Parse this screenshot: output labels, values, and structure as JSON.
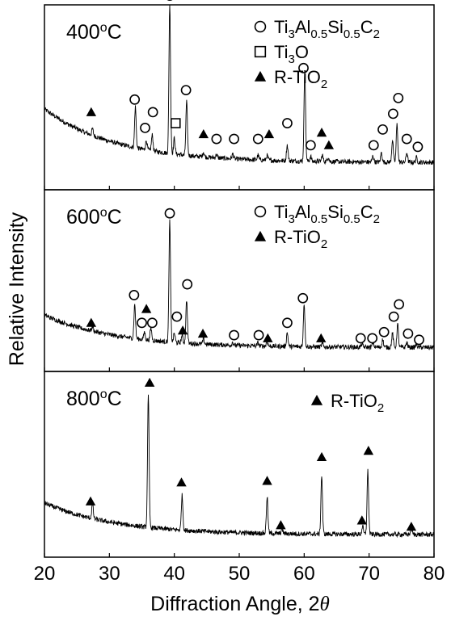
{
  "chart_data": {
    "type": "line",
    "xlabel_main": "Diffraction Angle, 2",
    "xlabel_theta": "θ",
    "ylabel": "Relative Intensity",
    "xlim": [
      20,
      80
    ],
    "x_ticks": [
      20,
      30,
      40,
      50,
      60,
      70,
      80
    ],
    "grid": false,
    "panels": [
      {
        "temp_value": "400",
        "temp_sup": "o",
        "temp_unit": "C",
        "legend": [
          {
            "symbol": "circle",
            "label": "Ti3Al0.5Si0.5C2"
          },
          {
            "symbol": "square",
            "label": "Ti3O"
          },
          {
            "symbol": "triangle",
            "label": "R-TiO2"
          }
        ],
        "baseline": {
          "start": 0.4,
          "end": 0.06
        },
        "peaks": [
          {
            "x": 27.4,
            "h": 0.04
          },
          {
            "x": 34.0,
            "h": 0.26
          },
          {
            "x": 35.7,
            "h": 0.06
          },
          {
            "x": 36.6,
            "h": 0.1
          },
          {
            "x": 39.3,
            "h": 0.95
          },
          {
            "x": 40.0,
            "h": 0.1
          },
          {
            "x": 41.9,
            "h": 0.34
          },
          {
            "x": 44.5,
            "h": 0.03
          },
          {
            "x": 46.5,
            "h": 0.02
          },
          {
            "x": 49.0,
            "h": 0.03
          },
          {
            "x": 52.9,
            "h": 0.03
          },
          {
            "x": 54.3,
            "h": 0.03
          },
          {
            "x": 57.4,
            "h": 0.1
          },
          {
            "x": 60.1,
            "h": 0.58
          },
          {
            "x": 61.0,
            "h": 0.03
          },
          {
            "x": 62.8,
            "h": 0.04
          },
          {
            "x": 63.7,
            "h": 0.03
          },
          {
            "x": 70.6,
            "h": 0.04
          },
          {
            "x": 71.9,
            "h": 0.06
          },
          {
            "x": 73.6,
            "h": 0.14
          },
          {
            "x": 74.3,
            "h": 0.24
          },
          {
            "x": 75.8,
            "h": 0.06
          },
          {
            "x": 77.3,
            "h": 0.03
          }
        ],
        "markers": [
          {
            "symbol": "triangle",
            "x": 27.2,
            "y": 0.38
          },
          {
            "symbol": "circle",
            "x": 33.9,
            "y": 0.46
          },
          {
            "symbol": "circle",
            "x": 35.5,
            "y": 0.28
          },
          {
            "symbol": "circle",
            "x": 36.7,
            "y": 0.38
          },
          {
            "symbol": "circle",
            "x": 39.3,
            "y": 1.12
          },
          {
            "symbol": "square",
            "x": 40.2,
            "y": 0.31
          },
          {
            "symbol": "circle",
            "x": 41.8,
            "y": 0.52
          },
          {
            "symbol": "triangle",
            "x": 44.5,
            "y": 0.24
          },
          {
            "symbol": "circle",
            "x": 46.5,
            "y": 0.21
          },
          {
            "symbol": "circle",
            "x": 49.2,
            "y": 0.21
          },
          {
            "symbol": "circle",
            "x": 52.9,
            "y": 0.21
          },
          {
            "symbol": "triangle",
            "x": 54.6,
            "y": 0.24
          },
          {
            "symbol": "circle",
            "x": 57.4,
            "y": 0.31
          },
          {
            "symbol": "circle",
            "x": 59.9,
            "y": 0.66
          },
          {
            "symbol": "circle",
            "x": 61.0,
            "y": 0.17
          },
          {
            "symbol": "triangle",
            "x": 62.7,
            "y": 0.25
          },
          {
            "symbol": "triangle",
            "x": 63.8,
            "y": 0.17
          },
          {
            "symbol": "circle",
            "x": 70.7,
            "y": 0.17
          },
          {
            "symbol": "circle",
            "x": 72.1,
            "y": 0.27
          },
          {
            "symbol": "circle",
            "x": 73.7,
            "y": 0.37
          },
          {
            "symbol": "circle",
            "x": 74.5,
            "y": 0.47
          },
          {
            "symbol": "circle",
            "x": 75.8,
            "y": 0.21
          },
          {
            "symbol": "circle",
            "x": 77.5,
            "y": 0.16
          }
        ]
      },
      {
        "temp_value": "600",
        "temp_sup": "o",
        "temp_unit": "C",
        "legend": [
          {
            "symbol": "circle",
            "label": "Ti3Al0.5Si0.5C2"
          },
          {
            "symbol": "triangle",
            "label": "R-TiO2"
          }
        ],
        "baseline": {
          "start": 0.25,
          "end": 0.04
        },
        "peaks": [
          {
            "x": 27.4,
            "h": 0.03
          },
          {
            "x": 33.9,
            "h": 0.22
          },
          {
            "x": 35.4,
            "h": 0.05
          },
          {
            "x": 36.4,
            "h": 0.08
          },
          {
            "x": 39.3,
            "h": 0.78
          },
          {
            "x": 40.0,
            "h": 0.06
          },
          {
            "x": 41.2,
            "h": 0.05
          },
          {
            "x": 41.9,
            "h": 0.28
          },
          {
            "x": 44.5,
            "h": 0.03
          },
          {
            "x": 49.0,
            "h": 0.02
          },
          {
            "x": 52.9,
            "h": 0.02
          },
          {
            "x": 54.3,
            "h": 0.03
          },
          {
            "x": 57.4,
            "h": 0.09
          },
          {
            "x": 60.0,
            "h": 0.28
          },
          {
            "x": 62.8,
            "h": 0.02
          },
          {
            "x": 68.9,
            "h": 0.02
          },
          {
            "x": 70.6,
            "h": 0.03
          },
          {
            "x": 72.1,
            "h": 0.05
          },
          {
            "x": 73.6,
            "h": 0.09
          },
          {
            "x": 74.4,
            "h": 0.15
          },
          {
            "x": 75.8,
            "h": 0.03
          },
          {
            "x": 77.3,
            "h": 0.02
          }
        ],
        "markers": [
          {
            "symbol": "triangle",
            "x": 27.2,
            "y": 0.2
          },
          {
            "symbol": "circle",
            "x": 33.8,
            "y": 0.38
          },
          {
            "symbol": "circle",
            "x": 35.0,
            "y": 0.2
          },
          {
            "symbol": "triangle",
            "x": 35.7,
            "y": 0.29
          },
          {
            "symbol": "circle",
            "x": 36.6,
            "y": 0.2
          },
          {
            "symbol": "circle",
            "x": 39.3,
            "y": 0.91
          },
          {
            "symbol": "circle",
            "x": 40.4,
            "y": 0.24
          },
          {
            "symbol": "triangle",
            "x": 41.3,
            "y": 0.15
          },
          {
            "symbol": "circle",
            "x": 42.0,
            "y": 0.45
          },
          {
            "symbol": "triangle",
            "x": 44.4,
            "y": 0.13
          },
          {
            "symbol": "circle",
            "x": 49.2,
            "y": 0.12
          },
          {
            "symbol": "circle",
            "x": 53.0,
            "y": 0.12
          },
          {
            "symbol": "triangle",
            "x": 54.4,
            "y": 0.1
          },
          {
            "symbol": "circle",
            "x": 57.4,
            "y": 0.2
          },
          {
            "symbol": "circle",
            "x": 59.8,
            "y": 0.36
          },
          {
            "symbol": "triangle",
            "x": 62.6,
            "y": 0.1
          },
          {
            "symbol": "circle",
            "x": 68.7,
            "y": 0.1
          },
          {
            "symbol": "circle",
            "x": 70.5,
            "y": 0.1
          },
          {
            "symbol": "circle",
            "x": 72.3,
            "y": 0.14
          },
          {
            "symbol": "circle",
            "x": 73.8,
            "y": 0.24
          },
          {
            "symbol": "circle",
            "x": 74.6,
            "y": 0.32
          },
          {
            "symbol": "circle",
            "x": 76.0,
            "y": 0.13
          },
          {
            "symbol": "circle",
            "x": 77.7,
            "y": 0.09
          }
        ]
      },
      {
        "temp_value": "800",
        "temp_sup": "o",
        "temp_unit": "C",
        "legend": [
          {
            "symbol": "triangle",
            "label": "R-TiO2"
          }
        ],
        "baseline": {
          "start": 0.23,
          "end": 0.03
        },
        "peaks": [
          {
            "x": 27.4,
            "h": 0.09
          },
          {
            "x": 36.0,
            "h": 0.83
          },
          {
            "x": 41.2,
            "h": 0.22
          },
          {
            "x": 54.3,
            "h": 0.23
          },
          {
            "x": 56.6,
            "h": 0.03
          },
          {
            "x": 62.7,
            "h": 0.37
          },
          {
            "x": 69.0,
            "h": 0.05
          },
          {
            "x": 69.8,
            "h": 0.4
          },
          {
            "x": 76.5,
            "h": 0.04
          }
        ],
        "markers": [
          {
            "symbol": "triangle",
            "x": 27.1,
            "y": 0.24
          },
          {
            "symbol": "triangle",
            "x": 36.2,
            "y": 0.99
          },
          {
            "symbol": "triangle",
            "x": 41.1,
            "y": 0.36
          },
          {
            "symbol": "triangle",
            "x": 54.3,
            "y": 0.37
          },
          {
            "symbol": "triangle",
            "x": 56.4,
            "y": 0.09
          },
          {
            "symbol": "triangle",
            "x": 62.7,
            "y": 0.52
          },
          {
            "symbol": "triangle",
            "x": 68.9,
            "y": 0.12
          },
          {
            "symbol": "triangle",
            "x": 69.9,
            "y": 0.56
          },
          {
            "symbol": "triangle",
            "x": 76.5,
            "y": 0.08
          }
        ]
      }
    ]
  }
}
